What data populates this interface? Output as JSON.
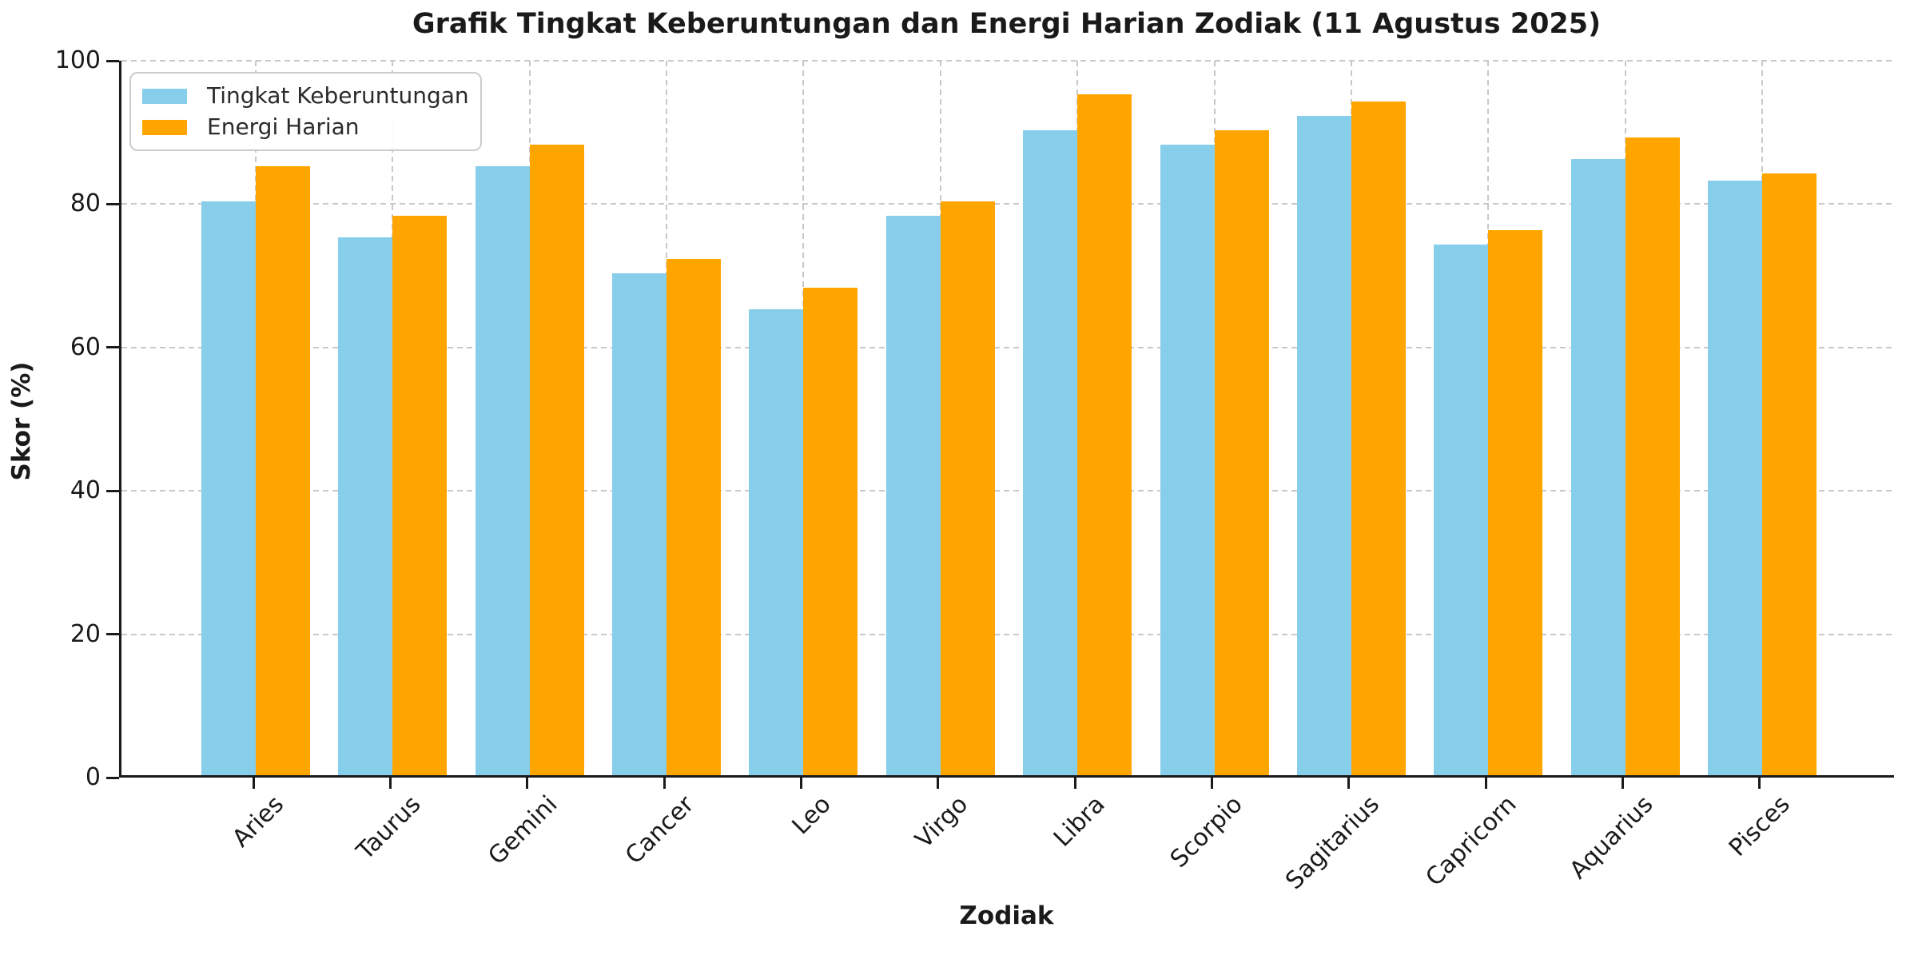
{
  "chart_data": {
    "type": "bar",
    "title": "Grafik Tingkat Keberuntungan dan Energi Harian Zodiak (11 Agustus 2025)",
    "xlabel": "Zodiak",
    "ylabel": "Skor (%)",
    "categories": [
      "Aries",
      "Taurus",
      "Gemini",
      "Cancer",
      "Leo",
      "Virgo",
      "Libra",
      "Scorpio",
      "Sagitarius",
      "Capricorn",
      "Aquarius",
      "Pisces"
    ],
    "series": [
      {
        "name": "Tingkat Keberuntungan",
        "color": "#87CEEB",
        "values": [
          80,
          75,
          85,
          70,
          65,
          78,
          90,
          88,
          92,
          74,
          86,
          83
        ]
      },
      {
        "name": "Energi Harian",
        "color": "#FFA500",
        "values": [
          85,
          78,
          88,
          72,
          68,
          80,
          95,
          90,
          94,
          76,
          89,
          84
        ]
      }
    ],
    "ylim": [
      0,
      100
    ],
    "yticks": [
      0,
      20,
      40,
      60,
      80,
      100
    ],
    "grid": true,
    "legend_position": "upper-left",
    "colors": {
      "grid": "#c8c8c8",
      "spine": "#1a1a1a",
      "text": "#1a1a1a",
      "legend_border": "#cccccc"
    }
  }
}
